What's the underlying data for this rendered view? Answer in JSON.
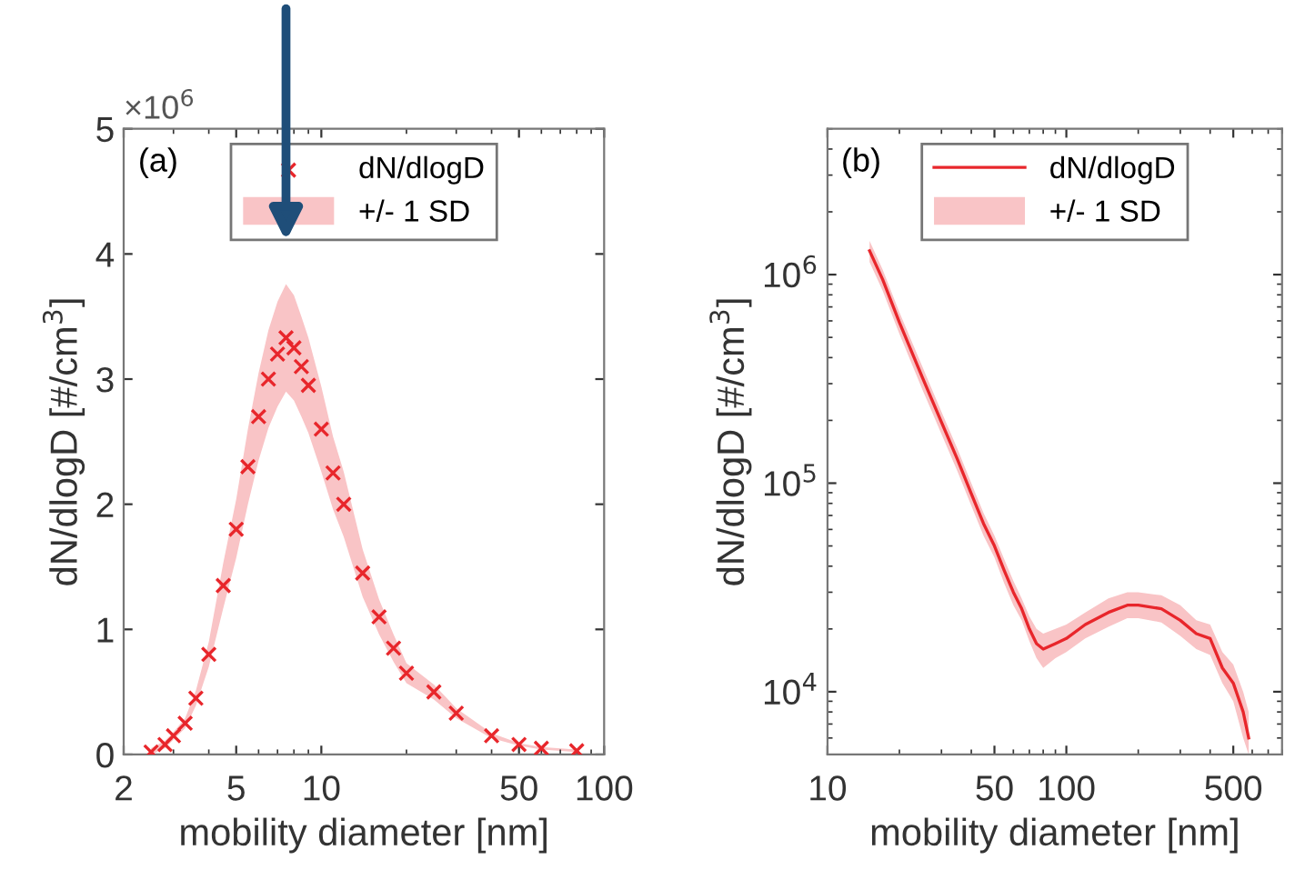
{
  "chart_data": [
    {
      "type": "scatter",
      "xlabel": "mobility diameter [nm]",
      "ylabel": "dN/dlogD [#/cm$^{3}$]",
      "log": "x",
      "xlim": [
        2,
        100
      ],
      "xticks": [
        2,
        5,
        10,
        50,
        100
      ],
      "ylim": [
        0,
        5
      ],
      "yticks": [
        0,
        1,
        2,
        3,
        4,
        5
      ],
      "legend": "top",
      "grid": false,
      "annotations": [
        "(a)",
        "+/- 1 SD",
        "×10$^{6}$"
      ],
      "series": [
        {
          "name": "dN/dlogD",
          "color": "#e8262b",
          "marker": "cross",
          "x": [
            2.5,
            2.8,
            3.0,
            3.3,
            3.6,
            4.0,
            4.5,
            5.0,
            5.5,
            6.0,
            6.5,
            7.0,
            7.5,
            8.0,
            8.5,
            9.0,
            10,
            11,
            12,
            14,
            16,
            18,
            20,
            25,
            30,
            40,
            50,
            60,
            80
          ],
          "values": [
            0.02,
            0.08,
            0.15,
            0.25,
            0.45,
            0.8,
            1.35,
            1.8,
            2.3,
            2.7,
            3.0,
            3.2,
            3.33,
            3.25,
            3.1,
            2.95,
            2.6,
            2.25,
            2.0,
            1.45,
            1.1,
            0.85,
            0.65,
            0.5,
            0.33,
            0.15,
            0.08,
            0.05,
            0.03
          ],
          "lower": [
            0,
            0.05,
            0.12,
            0.21,
            0.39,
            0.7,
            1.17,
            1.57,
            2.0,
            2.35,
            2.61,
            2.78,
            2.9,
            2.83,
            2.7,
            2.57,
            2.26,
            1.96,
            1.74,
            1.26,
            0.96,
            0.74,
            0.57,
            0.44,
            0.29,
            0.13,
            0.07,
            0.04,
            0.02
          ],
          "upper": [
            0.05,
            0.11,
            0.18,
            0.29,
            0.51,
            0.9,
            1.53,
            2.04,
            2.6,
            3.05,
            3.39,
            3.62,
            3.76,
            3.67,
            3.5,
            3.33,
            2.94,
            2.54,
            2.26,
            1.64,
            1.24,
            0.96,
            0.73,
            0.56,
            0.37,
            0.17,
            0.09,
            0.06,
            0.04
          ]
        }
      ]
    },
    {
      "type": "line",
      "xlabel": "mobility diameter [nm]",
      "ylabel": "dN/dlogD [#/cm$^{3}$]",
      "log": "xy",
      "xlim": [
        10,
        800
      ],
      "xticks": [
        10,
        50,
        100,
        500
      ],
      "ylim": [
        5000,
        5000000
      ],
      "yticks": [
        {
          "value": 10000,
          "label": "10$^{4}$"
        },
        {
          "value": 100000,
          "label": "10$^{5}$"
        },
        {
          "value": 1000000,
          "label": "10$^{6}$"
        }
      ],
      "legend": "top",
      "grid": false,
      "annotations": [
        "(b)",
        "+/- 1 SD"
      ],
      "series": [
        {
          "name": "dN/dlogD",
          "color": "#e8262b",
          "line_style": "solid",
          "x": [
            15,
            17,
            20,
            25,
            30,
            35,
            40,
            45,
            50,
            55,
            60,
            65,
            70,
            75,
            80,
            90,
            100,
            120,
            150,
            180,
            200,
            250,
            300,
            350,
            400,
            450,
            500,
            550,
            580
          ],
          "values": [
            1300000,
            950000,
            590000,
            320000,
            196000,
            130000,
            89000,
            64000,
            50000,
            38000,
            30000,
            25000,
            20000,
            17000,
            16000,
            17000,
            18000,
            21000,
            24000,
            26000,
            26000,
            25000,
            22000,
            19000,
            18000,
            13000,
            11000,
            8000,
            6000
          ],
          "lower": [
            1150000,
            840000,
            520000,
            280000,
            172000,
            114000,
            78000,
            56000,
            44000,
            33000,
            26000,
            22000,
            17500,
            14500,
            13000,
            14500,
            15500,
            18000,
            20500,
            22500,
            22500,
            21500,
            18500,
            16000,
            15000,
            11000,
            9000,
            6000,
            5000
          ],
          "upper": [
            1450000,
            1060000,
            660000,
            360000,
            220000,
            146000,
            100000,
            72000,
            56000,
            43000,
            34000,
            28000,
            23000,
            20000,
            19000,
            20000,
            21000,
            24000,
            28000,
            30000,
            30000,
            29000,
            26000,
            22000,
            21000,
            15500,
            13500,
            10000,
            8000
          ]
        }
      ]
    }
  ]
}
